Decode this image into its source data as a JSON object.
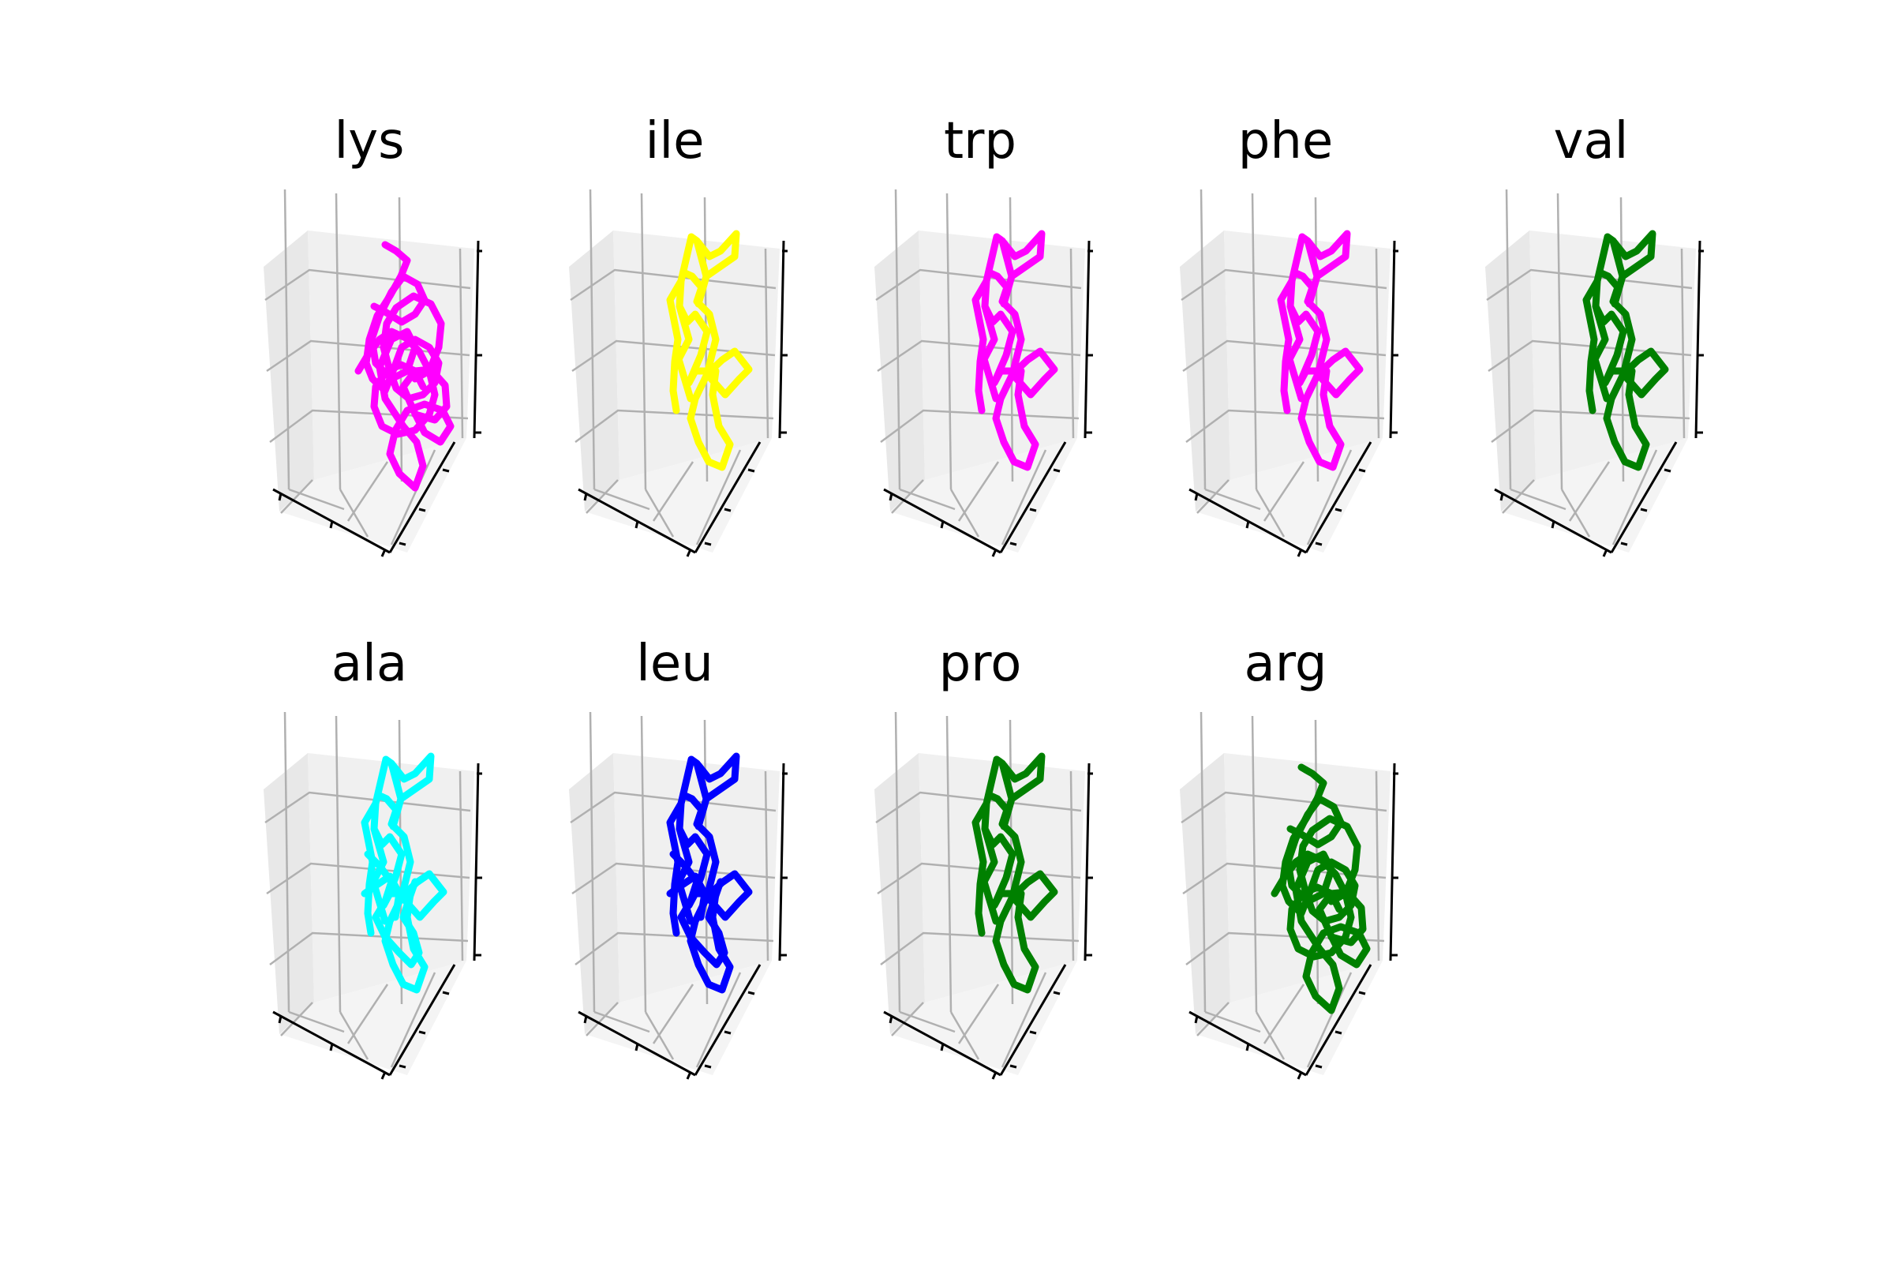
{
  "chart_data": [
    {
      "type": "line3d",
      "title": "lys",
      "color": "#ff00ff",
      "variant": "dense",
      "xlabel": "",
      "ylabel": "",
      "zlabel": "",
      "grid": true
    },
    {
      "type": "line3d",
      "title": "ile",
      "color": "#ffff00",
      "variant": "sparse",
      "xlabel": "",
      "ylabel": "",
      "zlabel": "",
      "grid": true
    },
    {
      "type": "line3d",
      "title": "trp",
      "color": "#ff00ff",
      "variant": "sparse",
      "xlabel": "",
      "ylabel": "",
      "zlabel": "",
      "grid": true
    },
    {
      "type": "line3d",
      "title": "phe",
      "color": "#ff00ff",
      "variant": "sparse",
      "xlabel": "",
      "ylabel": "",
      "zlabel": "",
      "grid": true
    },
    {
      "type": "line3d",
      "title": "val",
      "color": "#008000",
      "variant": "sparse",
      "xlabel": "",
      "ylabel": "",
      "zlabel": "",
      "grid": true
    },
    {
      "type": "line3d",
      "title": "ala",
      "color": "#00ffff",
      "variant": "medium",
      "xlabel": "",
      "ylabel": "",
      "zlabel": "",
      "grid": true
    },
    {
      "type": "line3d",
      "title": "leu",
      "color": "#0000ff",
      "variant": "medium",
      "xlabel": "",
      "ylabel": "",
      "zlabel": "",
      "grid": true
    },
    {
      "type": "line3d",
      "title": "pro",
      "color": "#008000",
      "variant": "sparse",
      "xlabel": "",
      "ylabel": "",
      "zlabel": "",
      "grid": true
    },
    {
      "type": "line3d",
      "title": "arg",
      "color": "#008000",
      "variant": "dense",
      "xlabel": "",
      "ylabel": "",
      "zlabel": "",
      "grid": true
    }
  ]
}
